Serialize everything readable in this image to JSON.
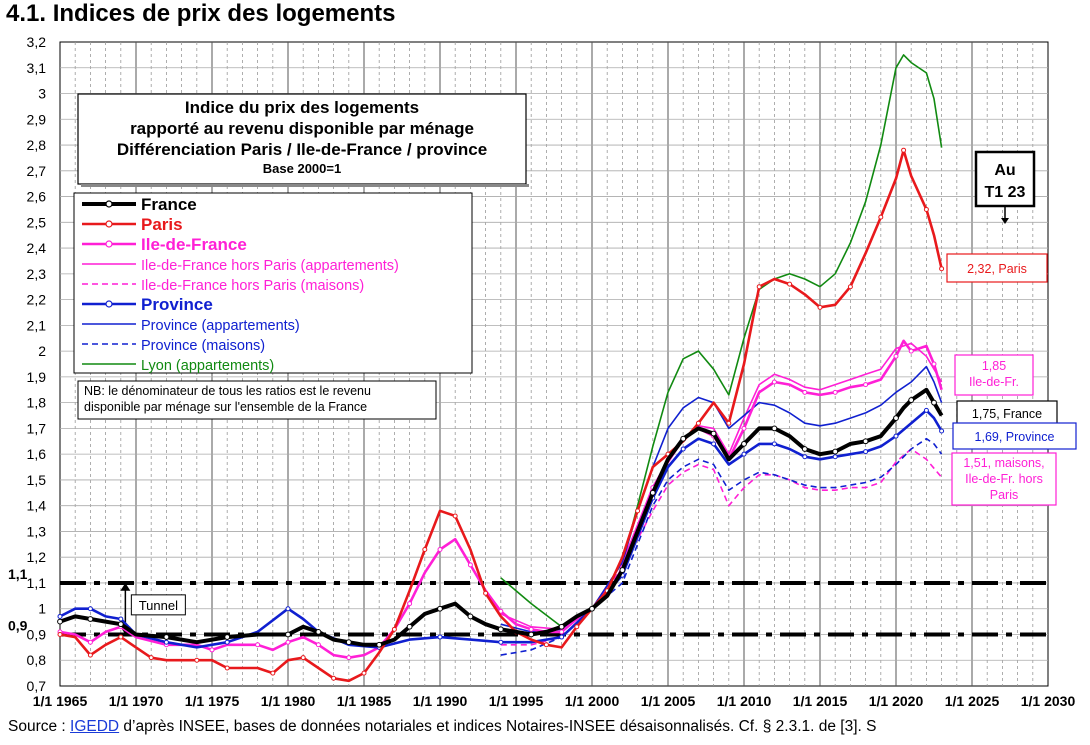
{
  "page": {
    "title": "4.1. Indices de prix des logements",
    "source_prefix": "Source : ",
    "source_link": "IGEDD",
    "source_rest": " d’après INSEE, bases de données notariales et indices Notaires-INSEE désaisonnalisés.  Cf. § 2.3.1. de [3].   S"
  },
  "chart_data": {
    "type": "line",
    "title_lines": [
      "Indice du prix des logements",
      "rapporté au revenu disponible par ménage",
      "Différenciation Paris / Ile-de-France / province",
      "Base 2000=1"
    ],
    "xlim": [
      1965,
      2030
    ],
    "ylim": [
      0.7,
      3.2
    ],
    "x_ticks": [
      "1/1 1965",
      "1/1 1970",
      "1/1 1975",
      "1/1 1980",
      "1/1 1985",
      "1/1 1990",
      "1/1 1995",
      "1/1 2000",
      "1/1 2005",
      "1/1 2010",
      "1/1 2015",
      "1/1 2020",
      "1/1 2025",
      "1/1 2030"
    ],
    "y_ticks": [
      "0,7",
      "0,8",
      "0,9",
      "1",
      "1,1",
      "1,2",
      "1,3",
      "1,4",
      "1,5",
      "1,6",
      "1,7",
      "1,8",
      "1,9",
      "2",
      "2,1",
      "2,2",
      "2,3",
      "2,4",
      "2,5",
      "2,6",
      "2,7",
      "2,8",
      "2,9",
      "3",
      "3,1",
      "3,2"
    ],
    "grid": true,
    "tunnel": {
      "upper": 1.1,
      "lower": 0.9,
      "label": "Tunnel",
      "left_labels": [
        "1,1",
        "0,9"
      ]
    },
    "note_lines": [
      "NB: le dénominateur de tous les ratios est le revenu",
      "disponible par ménage sur l'ensemble de la France"
    ],
    "last_quarter_label": [
      "Au",
      "T1 23"
    ],
    "colors": {
      "france": "#000000",
      "paris": "#e8191c",
      "idf": "#ff1fd6",
      "province": "#1020d0",
      "lyon": "#118a11"
    },
    "series": [
      {
        "name": "France",
        "color": "#000000",
        "style": "thick-marker",
        "x": [
          1965,
          1966,
          1967,
          1968,
          1969,
          1970,
          1972,
          1974,
          1976,
          1978,
          1980,
          1981,
          1982,
          1983,
          1984,
          1985,
          1986,
          1987,
          1988,
          1989,
          1990,
          1991,
          1992,
          1993,
          1994,
          1995,
          1996,
          1997,
          1998,
          1999,
          2000,
          2001,
          2002,
          2003,
          2004,
          2005,
          2006,
          2007,
          2008,
          2009,
          2010,
          2011,
          2012,
          2013,
          2014,
          2015,
          2016,
          2017,
          2018,
          2019,
          2020,
          2020.5,
          2021,
          2022,
          2022.5,
          2023
        ],
        "y": [
          0.95,
          0.97,
          0.96,
          0.95,
          0.94,
          0.9,
          0.89,
          0.87,
          0.89,
          0.9,
          0.9,
          0.93,
          0.91,
          0.88,
          0.87,
          0.86,
          0.86,
          0.88,
          0.93,
          0.98,
          1.0,
          1.02,
          0.97,
          0.94,
          0.92,
          0.91,
          0.9,
          0.91,
          0.93,
          0.97,
          1.0,
          1.05,
          1.15,
          1.3,
          1.45,
          1.58,
          1.66,
          1.7,
          1.68,
          1.58,
          1.64,
          1.7,
          1.7,
          1.67,
          1.62,
          1.6,
          1.61,
          1.64,
          1.65,
          1.67,
          1.74,
          1.78,
          1.81,
          1.85,
          1.8,
          1.75
        ]
      },
      {
        "name": "Paris",
        "color": "#e8191c",
        "style": "thick-marker",
        "x": [
          1965,
          1966,
          1967,
          1968,
          1969,
          1970,
          1971,
          1972,
          1974,
          1975,
          1976,
          1978,
          1979,
          1980,
          1981,
          1982,
          1983,
          1984,
          1985,
          1986,
          1987,
          1988,
          1989,
          1990,
          1991,
          1992,
          1993,
          1994,
          1995,
          1996,
          1997,
          1998,
          1999,
          2000,
          2001,
          2002,
          2003,
          2004,
          2005,
          2006,
          2007,
          2008,
          2009,
          2010,
          2011,
          2012,
          2013,
          2014,
          2015,
          2016,
          2017,
          2018,
          2019,
          2020,
          2020.5,
          2021,
          2022,
          2022.5,
          2023
        ],
        "y": [
          0.9,
          0.89,
          0.82,
          0.86,
          0.89,
          0.85,
          0.81,
          0.8,
          0.8,
          0.8,
          0.77,
          0.77,
          0.75,
          0.8,
          0.81,
          0.77,
          0.73,
          0.72,
          0.75,
          0.83,
          0.92,
          1.07,
          1.23,
          1.38,
          1.36,
          1.23,
          1.06,
          0.97,
          0.91,
          0.88,
          0.86,
          0.85,
          0.93,
          1.0,
          1.07,
          1.2,
          1.38,
          1.55,
          1.6,
          1.65,
          1.72,
          1.8,
          1.72,
          1.95,
          2.25,
          2.28,
          2.26,
          2.22,
          2.17,
          2.18,
          2.25,
          2.38,
          2.52,
          2.67,
          2.78,
          2.68,
          2.55,
          2.45,
          2.32
        ]
      },
      {
        "name": "Ile-de-France",
        "color": "#ff1fd6",
        "style": "thick-marker",
        "x": [
          1965,
          1966,
          1967,
          1968,
          1969,
          1970,
          1972,
          1974,
          1975,
          1976,
          1978,
          1979,
          1980,
          1981,
          1982,
          1983,
          1984,
          1985,
          1986,
          1987,
          1988,
          1989,
          1990,
          1991,
          1992,
          1993,
          1994,
          1995,
          1996,
          1997,
          1998,
          1999,
          2000,
          2001,
          2002,
          2003,
          2004,
          2005,
          2006,
          2007,
          2008,
          2009,
          2010,
          2011,
          2012,
          2013,
          2014,
          2015,
          2016,
          2017,
          2018,
          2019,
          2020,
          2020.5,
          2021,
          2022,
          2022.5,
          2023
        ],
        "y": [
          0.91,
          0.9,
          0.87,
          0.91,
          0.93,
          0.89,
          0.86,
          0.86,
          0.84,
          0.86,
          0.86,
          0.84,
          0.87,
          0.89,
          0.86,
          0.82,
          0.81,
          0.82,
          0.85,
          0.92,
          1.02,
          1.14,
          1.23,
          1.27,
          1.17,
          1.07,
          0.99,
          0.94,
          0.92,
          0.91,
          0.91,
          0.96,
          1.0,
          1.05,
          1.16,
          1.32,
          1.47,
          1.57,
          1.66,
          1.7,
          1.67,
          1.58,
          1.7,
          1.84,
          1.88,
          1.87,
          1.84,
          1.83,
          1.84,
          1.86,
          1.87,
          1.89,
          1.98,
          2.04,
          2.0,
          2.02,
          1.95,
          1.85
        ]
      },
      {
        "name": "Ile-de-France hors Paris (appartements)",
        "color": "#ff1fd6",
        "style": "thin",
        "x": [
          1994,
          1996,
          1998,
          2000,
          2002,
          2004,
          2005,
          2006,
          2007,
          2008,
          2009,
          2010,
          2011,
          2012,
          2013,
          2014,
          2015,
          2016,
          2017,
          2018,
          2019,
          2020,
          2021,
          2022,
          2023
        ],
        "y": [
          0.98,
          0.93,
          0.92,
          1.0,
          1.18,
          1.47,
          1.58,
          1.66,
          1.71,
          1.7,
          1.6,
          1.74,
          1.87,
          1.91,
          1.89,
          1.86,
          1.85,
          1.87,
          1.89,
          1.91,
          1.93,
          2.01,
          2.03,
          1.98,
          1.88
        ]
      },
      {
        "name": "Ile-de-France hors Paris (maisons)",
        "color": "#ff1fd6",
        "style": "dashed",
        "x": [
          1994,
          1996,
          1998,
          2000,
          2002,
          2004,
          2005,
          2006,
          2007,
          2008,
          2009,
          2010,
          2011,
          2012,
          2013,
          2014,
          2015,
          2016,
          2017,
          2018,
          2019,
          2020,
          2021,
          2022,
          2023
        ],
        "y": [
          0.86,
          0.86,
          0.89,
          1.0,
          1.16,
          1.38,
          1.48,
          1.53,
          1.56,
          1.54,
          1.4,
          1.47,
          1.52,
          1.52,
          1.5,
          1.47,
          1.46,
          1.46,
          1.47,
          1.47,
          1.49,
          1.57,
          1.62,
          1.58,
          1.51
        ]
      },
      {
        "name": "Province",
        "color": "#1020d0",
        "style": "thick-marker",
        "x": [
          1965,
          1966,
          1967,
          1968,
          1969,
          1970,
          1972,
          1974,
          1976,
          1978,
          1980,
          1981,
          1982,
          1984,
          1986,
          1988,
          1990,
          1992,
          1994,
          1996,
          1998,
          2000,
          2002,
          2003,
          2004,
          2005,
          2006,
          2007,
          2008,
          2009,
          2010,
          2011,
          2012,
          2013,
          2014,
          2015,
          2016,
          2017,
          2018,
          2019,
          2020,
          2021,
          2022,
          2022.5,
          2023
        ],
        "y": [
          0.97,
          1.0,
          1.0,
          0.97,
          0.96,
          0.9,
          0.87,
          0.85,
          0.87,
          0.91,
          1.0,
          0.96,
          0.91,
          0.86,
          0.85,
          0.88,
          0.89,
          0.88,
          0.87,
          0.87,
          0.89,
          1.0,
          1.13,
          1.28,
          1.43,
          1.55,
          1.62,
          1.66,
          1.64,
          1.56,
          1.6,
          1.64,
          1.64,
          1.62,
          1.59,
          1.58,
          1.59,
          1.6,
          1.61,
          1.63,
          1.67,
          1.72,
          1.77,
          1.74,
          1.69
        ]
      },
      {
        "name": "Province (appartements)",
        "color": "#1020d0",
        "style": "thin",
        "x": [
          1994,
          1996,
          1998,
          2000,
          2002,
          2003,
          2004,
          2005,
          2006,
          2007,
          2008,
          2009,
          2010,
          2011,
          2012,
          2013,
          2014,
          2015,
          2016,
          2017,
          2018,
          2019,
          2020,
          2021,
          2022,
          2022.5,
          2023
        ],
        "y": [
          0.94,
          0.91,
          0.92,
          1.0,
          1.18,
          1.38,
          1.55,
          1.7,
          1.78,
          1.82,
          1.8,
          1.7,
          1.75,
          1.8,
          1.79,
          1.76,
          1.72,
          1.71,
          1.72,
          1.74,
          1.76,
          1.79,
          1.84,
          1.88,
          1.94,
          1.88,
          1.8
        ]
      },
      {
        "name": "Province (maisons)",
        "color": "#1020d0",
        "style": "dashed",
        "x": [
          1994,
          1996,
          1998,
          2000,
          2002,
          2003,
          2004,
          2005,
          2006,
          2007,
          2008,
          2009,
          2010,
          2011,
          2012,
          2013,
          2014,
          2015,
          2016,
          2017,
          2018,
          2019,
          2020,
          2021,
          2022,
          2022.5,
          2023
        ],
        "y": [
          0.82,
          0.84,
          0.89,
          1.0,
          1.1,
          1.25,
          1.4,
          1.5,
          1.55,
          1.58,
          1.56,
          1.46,
          1.5,
          1.53,
          1.52,
          1.5,
          1.48,
          1.47,
          1.47,
          1.48,
          1.49,
          1.51,
          1.56,
          1.62,
          1.66,
          1.64,
          1.6
        ]
      },
      {
        "name": "Lyon (appartements)",
        "color": "#118a11",
        "style": "thin",
        "x": [
          1994,
          1996,
          1998,
          2000,
          2002,
          2003,
          2004,
          2005,
          2006,
          2007,
          2008,
          2009,
          2010,
          2011,
          2012,
          2013,
          2014,
          2015,
          2016,
          2017,
          2018,
          2019,
          2020,
          2020.5,
          2021,
          2022,
          2022.5,
          2023
        ],
        "y": [
          1.12,
          1.02,
          0.93,
          1.0,
          1.18,
          1.4,
          1.63,
          1.84,
          1.97,
          2.0,
          1.93,
          1.83,
          2.05,
          2.24,
          2.28,
          2.3,
          2.28,
          2.25,
          2.3,
          2.42,
          2.58,
          2.8,
          3.1,
          3.15,
          3.12,
          3.08,
          2.98,
          2.79
        ]
      }
    ],
    "end_labels": [
      {
        "text": "2,32, Paris",
        "color": "#e8191c",
        "y": 2.32
      },
      {
        "text": "1,85\nIle-de-Fr.",
        "color": "#ff1fd6",
        "y": 1.85
      },
      {
        "text": "1,75, France",
        "color": "#000000",
        "y": 1.75
      },
      {
        "text": "1,69, Province",
        "color": "#1020d0",
        "y": 1.69
      },
      {
        "text": "1,51, maisons,\nIle-de-Fr. hors\nParis",
        "color": "#ff1fd6",
        "y": 1.51
      }
    ]
  }
}
